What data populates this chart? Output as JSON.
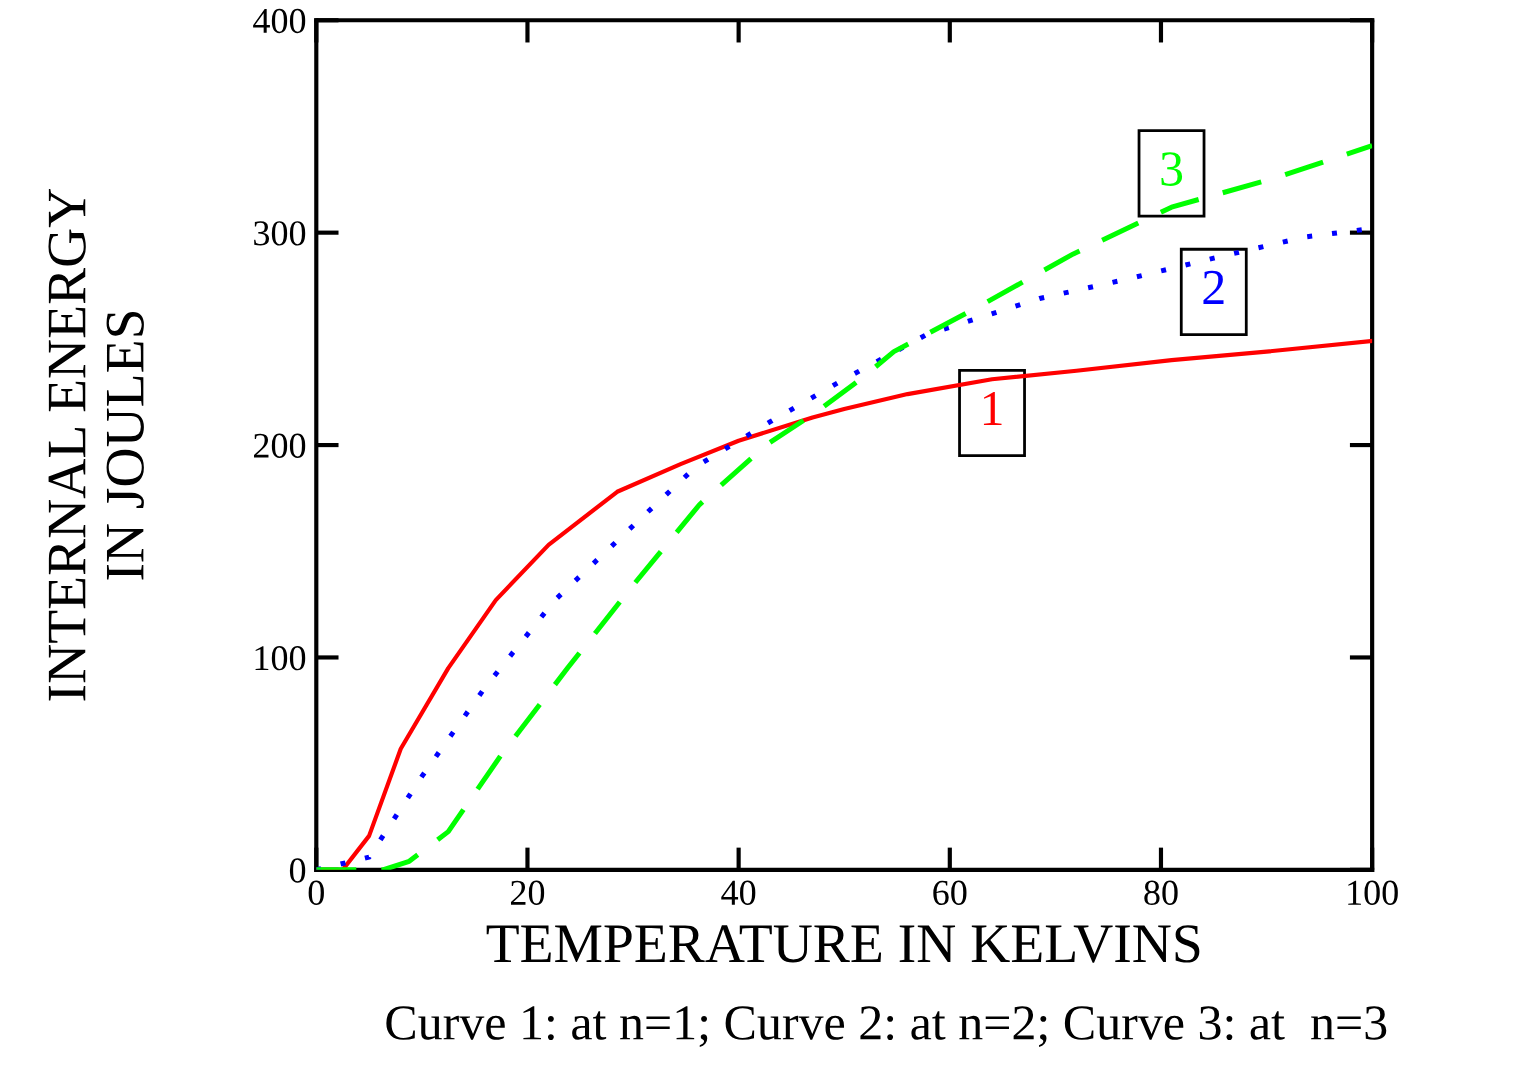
{
  "chart_data": {
    "type": "line",
    "xlabel": "TEMPERATURE IN KELVINS",
    "ylabel": "INTERNAL ENERGY\nIN JOULES",
    "annotations": [
      "Curve 1: at n=1; Curve 2: at n=2; Curve 3: at  n=3"
    ],
    "xlim": [
      0,
      100
    ],
    "ylim": [
      0,
      400
    ],
    "xticks": [
      0,
      20,
      40,
      60,
      80,
      100
    ],
    "yticks": [
      0,
      100,
      200,
      300,
      400
    ],
    "grid": false,
    "legend": false,
    "marker": "none",
    "series": [
      {
        "name": "1",
        "color": "#ff0000",
        "line_style": "solid",
        "x": [
          0,
          2.5,
          5,
          8,
          12.5,
          17,
          22,
          28.5,
          34.5,
          40,
          47,
          50,
          56,
          64,
          72,
          81,
          90,
          100
        ],
        "values": [
          0,
          0,
          16,
          57,
          95,
          127,
          153,
          178,
          191,
          202,
          213,
          217,
          224,
          231,
          235,
          240,
          244,
          249
        ]
      },
      {
        "name": "2",
        "color": "#0000ff",
        "line_style": "dotted",
        "x": [
          0,
          5,
          10,
          16,
          22.6,
          30,
          36,
          43,
          50,
          57.8,
          68.5,
          76.7,
          85,
          93.7,
          100
        ],
        "values": [
          0,
          6,
          44,
          86,
          127,
          162,
          190,
          211,
          231,
          252,
          269,
          278,
          288,
          298,
          302
        ]
      },
      {
        "name": "3",
        "color": "#00ff00",
        "line_style": "dashed",
        "x": [
          0,
          6.3,
          8.8,
          12.5,
          17.5,
          23.8,
          30,
          36.3,
          42.6,
          47.5,
          51.8,
          54.7,
          62.3,
          71.7,
          81,
          91,
          100
        ],
        "values": [
          0,
          0,
          4,
          18,
          54,
          95,
          134,
          172,
          200,
          216,
          232,
          244,
          264,
          290,
          312,
          326,
          341
        ]
      }
    ]
  }
}
